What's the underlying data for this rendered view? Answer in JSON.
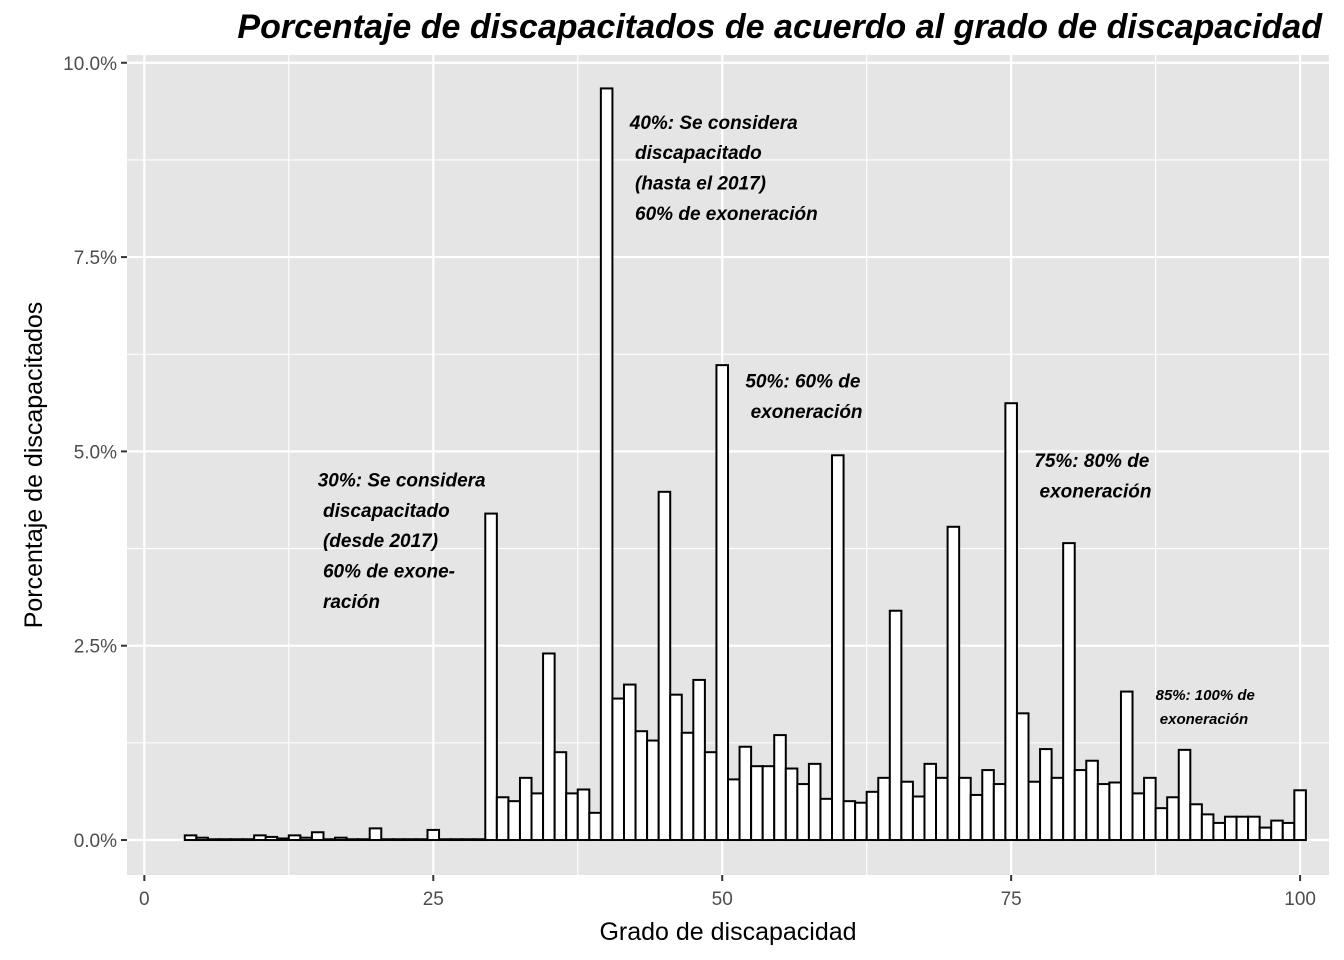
{
  "chart_data": {
    "type": "bar",
    "title": "Porcentaje de discapacitados de acuerdo al grado de discapacidad",
    "xlabel": "Grado de discapacidad",
    "ylabel": "Porcentaje de discapacitados",
    "xlim": [
      -1.5,
      102.5
    ],
    "ylim": [
      -0.45,
      10.1
    ],
    "x_ticks": [
      0,
      25,
      50,
      75,
      100
    ],
    "x_tick_labels": [
      "0",
      "25",
      "50",
      "75",
      "100"
    ],
    "y_ticks": [
      0,
      2.5,
      5,
      7.5,
      10
    ],
    "y_tick_labels": [
      "0.0%",
      "2.5%",
      "5.0%",
      "7.5%",
      "10.0%"
    ],
    "bar_fill": "#ffffff",
    "bar_stroke": "#000000",
    "panel_background": "#e5e5e5",
    "grid_color": "#ffffff",
    "grid": true,
    "x": [
      4,
      5,
      6,
      7,
      8,
      9,
      10,
      11,
      12,
      13,
      14,
      15,
      16,
      17,
      18,
      19,
      20,
      21,
      22,
      23,
      24,
      25,
      26,
      27,
      28,
      29,
      30,
      31,
      32,
      33,
      34,
      35,
      36,
      37,
      38,
      39,
      40,
      41,
      42,
      43,
      44,
      45,
      46,
      47,
      48,
      49,
      50,
      51,
      52,
      53,
      54,
      55,
      56,
      57,
      58,
      59,
      60,
      61,
      62,
      63,
      64,
      65,
      66,
      67,
      68,
      69,
      70,
      71,
      72,
      73,
      74,
      75,
      76,
      77,
      78,
      79,
      80,
      81,
      82,
      83,
      84,
      85,
      86,
      87,
      88,
      89,
      90,
      91,
      92,
      93,
      94,
      95,
      96,
      97,
      98,
      99,
      100
    ],
    "values": [
      0.06,
      0.03,
      0.01,
      0.01,
      0.01,
      0.01,
      0.06,
      0.04,
      0.02,
      0.06,
      0.03,
      0.1,
      0.01,
      0.03,
      0.01,
      0.01,
      0.15,
      0.01,
      0.01,
      0.01,
      0.01,
      0.13,
      0.01,
      0.01,
      0.01,
      0.01,
      4.2,
      0.55,
      0.5,
      0.8,
      0.6,
      2.4,
      1.13,
      0.6,
      0.65,
      0.35,
      9.67,
      1.82,
      2.0,
      1.4,
      1.28,
      4.48,
      1.87,
      1.38,
      2.06,
      1.13,
      6.11,
      0.78,
      1.2,
      0.95,
      0.95,
      1.35,
      0.92,
      0.72,
      0.98,
      0.53,
      4.95,
      0.5,
      0.48,
      0.62,
      0.8,
      2.95,
      0.75,
      0.56,
      0.98,
      0.8,
      4.03,
      0.8,
      0.58,
      0.9,
      0.72,
      5.62,
      1.63,
      0.75,
      1.17,
      0.8,
      3.82,
      0.9,
      1.02,
      0.72,
      0.74,
      1.91,
      0.6,
      0.8,
      0.41,
      0.55,
      1.16,
      0.46,
      0.33,
      0.22,
      0.3,
      0.3,
      0.3,
      0.16,
      0.25,
      0.22,
      0.64
    ],
    "annotations": [
      {
        "x": 15,
        "y": 4.55,
        "size": 19,
        "lines": [
          "30%: Se considera",
          " discapacitado",
          " (desde 2017)",
          " 60% de exone-",
          " ración"
        ]
      },
      {
        "x": 42,
        "y": 9.15,
        "size": 19,
        "lines": [
          "40%: Se considera",
          " discapacitado",
          " (hasta el 2017)",
          " 60% de exoneración"
        ]
      },
      {
        "x": 52,
        "y": 5.82,
        "size": 19,
        "lines": [
          "50%: 60% de",
          " exoneración"
        ]
      },
      {
        "x": 77,
        "y": 4.8,
        "size": 19,
        "lines": [
          "75%: 80% de",
          " exoneración"
        ]
      },
      {
        "x": 87.5,
        "y": 1.8,
        "size": 15,
        "lines": [
          "85%: 100% de",
          " exoneración"
        ]
      }
    ]
  }
}
